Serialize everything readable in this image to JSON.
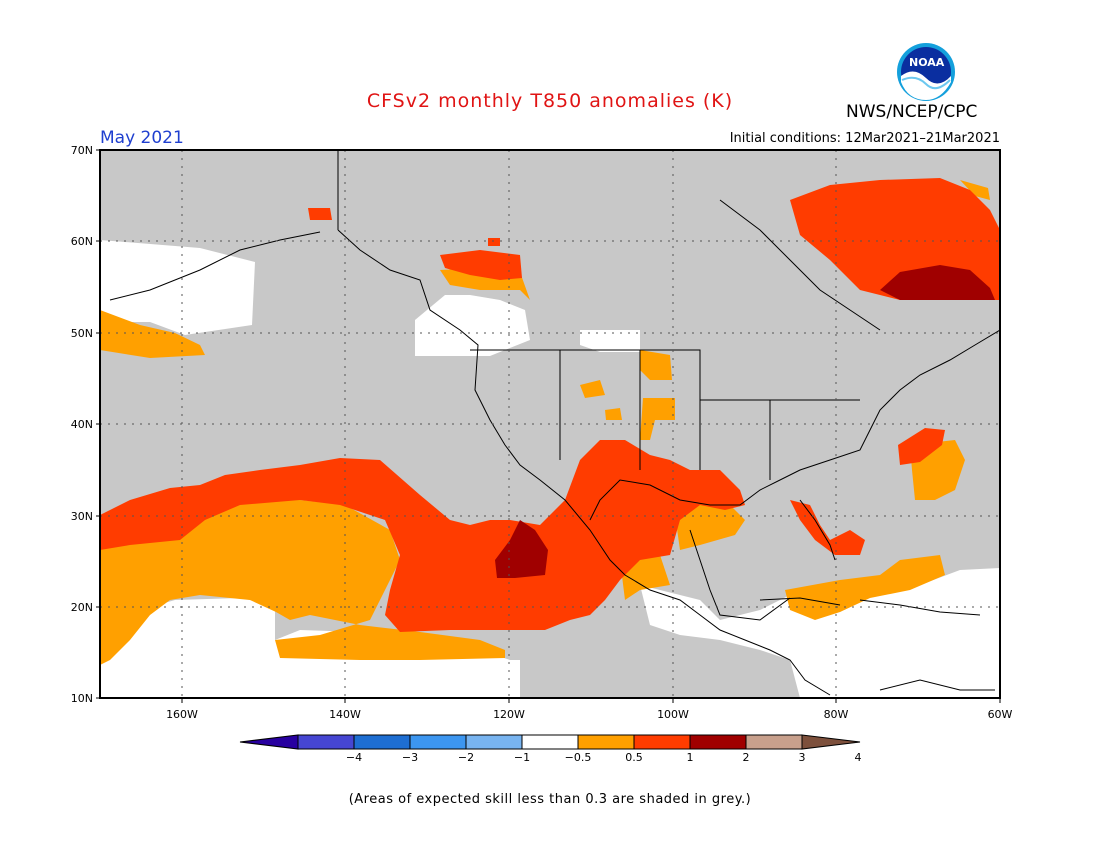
{
  "header": {
    "title": "CFSv2 monthly T850 anomalies (K)",
    "month": "May 2021",
    "initial_conditions": "Initial conditions: 12Mar2021–21Mar2021",
    "agency": "NWS/NCEP/CPC",
    "logo_text": "NOAA"
  },
  "colors": {
    "title": "#e01414",
    "month": "#1f3fcf",
    "skill_grey": "#c8c8c8",
    "ocean_white": "#ffffff",
    "bin_0_5_1": "#ffa000",
    "bin_1_2": "#ff3c00",
    "bin_2_3": "#a00000",
    "bin_3_4": "#c8a08c",
    "bin_gt4": "#7d503c"
  },
  "map": {
    "y_ticks": [
      "70N",
      "60N",
      "50N",
      "40N",
      "30N",
      "20N",
      "10N"
    ],
    "x_ticks": [
      "160W",
      "140W",
      "120W",
      "100W",
      "80W",
      "60W"
    ]
  },
  "colorbar": {
    "labels": [
      "−4",
      "−3",
      "−2",
      "−1",
      "−0.5",
      "0.5",
      "1",
      "2",
      "3",
      "4"
    ],
    "colors": [
      "#2800a0",
      "#4646d2",
      "#1e6ed2",
      "#3c96f0",
      "#78b4f0",
      "#ffffff",
      "#ffa000",
      "#ff3c00",
      "#a00000",
      "#c8a08c",
      "#7d503c"
    ]
  },
  "footnote": "(Areas of expected skill less than 0.3 are shaded in grey.)"
}
